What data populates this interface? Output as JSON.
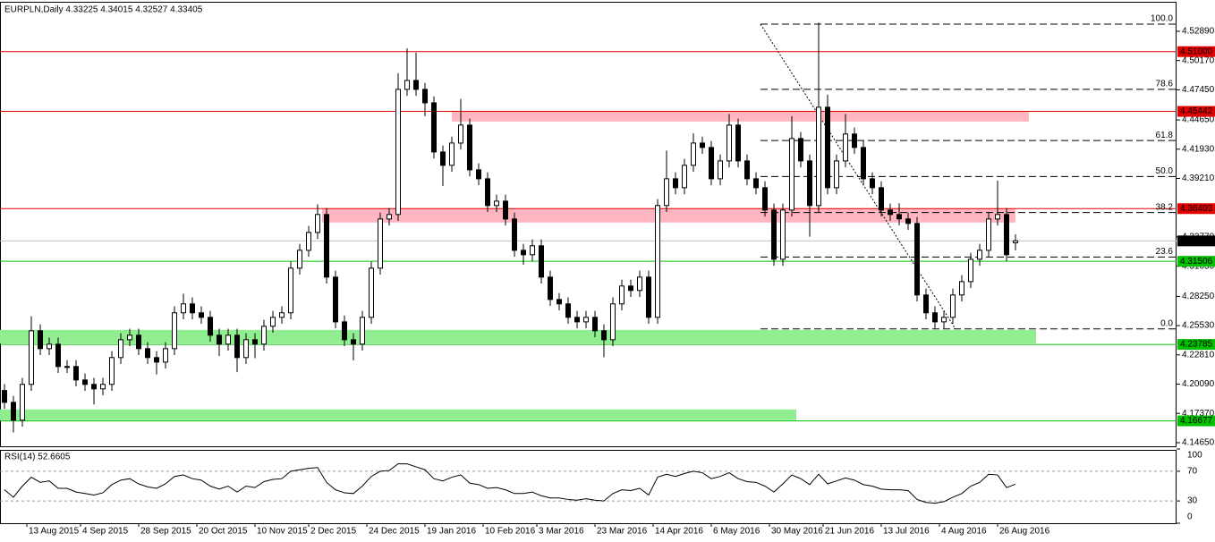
{
  "chart_data": [
    {
      "type": "candlestick",
      "title": "EURPLN,Daily  4.33225 4.34015 4.32527 4.33405",
      "x": [
        0,
        1,
        2,
        3,
        4,
        5,
        6,
        7,
        8,
        9,
        10,
        11,
        12,
        13,
        14,
        15,
        16,
        17,
        18,
        19,
        20,
        21,
        22,
        23,
        24,
        25,
        26,
        27,
        28,
        29,
        30,
        31,
        32,
        33,
        34,
        35,
        36,
        37,
        38,
        39,
        40,
        41,
        42,
        43,
        44,
        45,
        46,
        47,
        48,
        49,
        50,
        51,
        52,
        53,
        54,
        55,
        56,
        57,
        58,
        59,
        60,
        61,
        62,
        63,
        64,
        65,
        66,
        67,
        68,
        69,
        70,
        71,
        72,
        73,
        74,
        75,
        76,
        77,
        78,
        79,
        80,
        81,
        82,
        83,
        84,
        85,
        86,
        87,
        88,
        89,
        90,
        91,
        92,
        93,
        94,
        95,
        96,
        97,
        98,
        99,
        100,
        101,
        102,
        103,
        104,
        105,
        106,
        107,
        108,
        109,
        110,
        111,
        112,
        113
      ],
      "open": [
        4.195,
        4.184,
        4.1674,
        4.2007,
        4.2505,
        4.2339,
        4.2381,
        4.2173,
        4.2173,
        4.2048,
        4.2007,
        4.1965,
        4.2007,
        4.2256,
        4.2422,
        4.2464,
        4.2339,
        4.2256,
        4.2214,
        4.2339,
        4.2672,
        4.2755,
        4.2672,
        4.263,
        4.2464,
        4.2381,
        4.2464,
        4.2256,
        4.2422,
        4.2381,
        4.2547,
        4.263,
        4.2672,
        4.3087,
        4.3253,
        4.3419,
        4.3586,
        4.3004,
        4.2588,
        4.2422,
        4.2381,
        4.263,
        4.3087,
        4.3544,
        4.3586,
        4.4749,
        4.4832,
        4.4749,
        4.4624,
        4.4167,
        4.4043,
        4.425,
        4.4417,
        4.4001,
        4.3918,
        4.3669,
        4.371,
        4.3544,
        4.3253,
        4.3212,
        4.3295,
        4.3004,
        4.2796,
        4.2755,
        4.263,
        4.2588,
        4.263,
        4.2505,
        4.2422,
        4.2755,
        4.2921,
        4.288,
        4.3004,
        4.263,
        4.3669,
        4.3918,
        4.3835,
        4.4043,
        4.425,
        4.4209,
        4.3918,
        4.4084,
        4.4417,
        4.4084,
        4.3918,
        4.3835,
        4.3627,
        4.317,
        4.3627,
        4.4292,
        4.4084,
        4.3669,
        4.4583,
        4.3835,
        4.4084,
        4.4334,
        4.4209,
        4.3918,
        4.3835,
        4.3627,
        4.3586,
        4.3545,
        4.3503,
        4.2838,
        4.2672,
        4.2588,
        4.263,
        4.2838,
        4.2962,
        4.317,
        4.3253,
        4.3544,
        4.3586,
        4.3323
      ],
      "high": [
        4.201,
        4.19,
        4.2067,
        4.264,
        4.2565,
        4.2441,
        4.2441,
        4.2233,
        4.2233,
        4.2108,
        4.2067,
        4.2067,
        4.2316,
        4.2482,
        4.2524,
        4.2524,
        4.2399,
        4.2316,
        4.2399,
        4.2732,
        4.285,
        4.2815,
        4.2732,
        4.269,
        4.2524,
        4.2524,
        4.2524,
        4.2482,
        4.2482,
        4.2607,
        4.269,
        4.2732,
        4.3147,
        4.3313,
        4.3479,
        4.368,
        4.3646,
        4.3064,
        4.2648,
        4.2482,
        4.269,
        4.3147,
        4.3604,
        4.3646,
        4.49,
        4.513,
        4.509,
        4.4809,
        4.4684,
        4.4227,
        4.431,
        4.466,
        4.4477,
        4.4061,
        4.3978,
        4.377,
        4.377,
        4.3604,
        4.3313,
        4.3355,
        4.3355,
        4.3064,
        4.2856,
        4.2815,
        4.269,
        4.269,
        4.269,
        4.2565,
        4.2815,
        4.2981,
        4.2981,
        4.3064,
        4.3064,
        4.3729,
        4.418,
        4.3978,
        4.4103,
        4.434,
        4.431,
        4.4269,
        4.4144,
        4.452,
        4.4477,
        4.4144,
        4.3978,
        4.3895,
        4.3687,
        4.3687,
        4.45,
        4.4352,
        4.4144,
        4.537,
        4.47,
        4.4144,
        4.452,
        4.4394,
        4.4269,
        4.3978,
        4.3895,
        4.3687,
        4.369,
        4.3605,
        4.3563,
        4.2898,
        4.2732,
        4.269,
        4.2898,
        4.3022,
        4.323,
        4.3313,
        4.3604,
        4.39,
        4.3646,
        4.3402
      ],
      "low": [
        4.178,
        4.156,
        4.1614,
        4.1947,
        4.2279,
        4.2279,
        4.2113,
        4.2113,
        4.1988,
        4.1947,
        4.182,
        4.1905,
        4.1947,
        4.2196,
        4.2362,
        4.2279,
        4.2196,
        4.21,
        4.2154,
        4.2279,
        4.2612,
        4.2612,
        4.257,
        4.2404,
        4.227,
        4.2321,
        4.212,
        4.2196,
        4.225,
        4.2321,
        4.2487,
        4.257,
        4.2612,
        4.3027,
        4.3193,
        4.3359,
        4.2944,
        4.2528,
        4.2362,
        4.223,
        4.2321,
        4.257,
        4.3027,
        4.3484,
        4.3526,
        4.4689,
        4.4689,
        4.45,
        4.4107,
        4.385,
        4.3983,
        4.419,
        4.3941,
        4.3858,
        4.3609,
        4.3609,
        4.3484,
        4.3193,
        4.312,
        4.3152,
        4.2944,
        4.2736,
        4.2695,
        4.257,
        4.2528,
        4.2528,
        4.2445,
        4.226,
        4.2362,
        4.2695,
        4.282,
        4.282,
        4.257,
        4.257,
        4.3609,
        4.3775,
        4.3775,
        4.3983,
        4.4149,
        4.3858,
        4.3858,
        4.4024,
        4.4024,
        4.3858,
        4.3775,
        4.3567,
        4.311,
        4.311,
        4.3567,
        4.4024,
        4.338,
        4.3609,
        4.3775,
        4.3775,
        4.4024,
        4.4149,
        4.3858,
        4.3775,
        4.3567,
        4.3526,
        4.3485,
        4.3443,
        4.2778,
        4.2612,
        4.2528,
        4.2528,
        4.257,
        4.2778,
        4.2902,
        4.311,
        4.3193,
        4.3484,
        4.3152,
        4.3253
      ],
      "close": [
        4.184,
        4.1674,
        4.2007,
        4.2505,
        4.2339,
        4.2381,
        4.2173,
        4.2173,
        4.2048,
        4.2007,
        4.1965,
        4.2007,
        4.2256,
        4.2422,
        4.2464,
        4.2339,
        4.2256,
        4.2214,
        4.2339,
        4.2672,
        4.2755,
        4.2672,
        4.263,
        4.2464,
        4.2381,
        4.2464,
        4.2256,
        4.2422,
        4.2381,
        4.2547,
        4.263,
        4.2672,
        4.3087,
        4.3253,
        4.3419,
        4.3586,
        4.3004,
        4.2588,
        4.2422,
        4.2381,
        4.263,
        4.3087,
        4.3544,
        4.3586,
        4.4749,
        4.4832,
        4.4749,
        4.4624,
        4.4167,
        4.4043,
        4.425,
        4.4417,
        4.4001,
        4.3918,
        4.3669,
        4.371,
        4.3544,
        4.3253,
        4.3212,
        4.3295,
        4.3004,
        4.2796,
        4.2755,
        4.263,
        4.2588,
        4.263,
        4.2505,
        4.2422,
        4.2755,
        4.2921,
        4.288,
        4.3004,
        4.263,
        4.3669,
        4.3918,
        4.3835,
        4.4043,
        4.425,
        4.4209,
        4.3918,
        4.4084,
        4.4417,
        4.4084,
        4.3918,
        4.3835,
        4.3627,
        4.317,
        4.3627,
        4.4292,
        4.4084,
        4.3669,
        4.4583,
        4.3835,
        4.4084,
        4.4334,
        4.4209,
        4.3918,
        4.3835,
        4.3627,
        4.3586,
        4.3545,
        4.3503,
        4.2838,
        4.2672,
        4.2588,
        4.263,
        4.2838,
        4.2962,
        4.317,
        4.3253,
        4.3544,
        4.3586,
        4.3212,
        4.3341
      ],
      "up_color": "#ffffff",
      "down_color": "#000000",
      "wick_color": "#000000",
      "xlim": [
        -0.5,
        131
      ],
      "ylim": [
        4.1423,
        4.5563
      ],
      "yticks": [
        {
          "value": 4.5289,
          "label": "4.52890"
        },
        {
          "value": 4.5017,
          "label": "4.50170"
        },
        {
          "value": 4.4745,
          "label": "4.47450"
        },
        {
          "value": 4.4465,
          "label": "4.44650"
        },
        {
          "value": 4.4193,
          "label": "4.41930"
        },
        {
          "value": 4.3921,
          "label": "4.39210"
        },
        {
          "value": 4.3377,
          "label": "4.33770"
        },
        {
          "value": 4.3105,
          "label": "4.31050"
        },
        {
          "value": 4.2825,
          "label": "4.28250"
        },
        {
          "value": 4.2553,
          "label": "4.25530"
        },
        {
          "value": 4.2281,
          "label": "4.22810"
        },
        {
          "value": 4.2009,
          "label": "4.20090"
        },
        {
          "value": 4.1737,
          "label": "4.17370"
        },
        {
          "value": 4.1465,
          "label": "4.14650"
        }
      ],
      "zones": [
        {
          "from": 4.445,
          "to": 4.455,
          "start": 50,
          "end": 114.5,
          "color": "#ffb6c1"
        },
        {
          "from": 4.3511,
          "to": 4.3644,
          "start": 35.5,
          "end": 113,
          "color": "#ffb6c1"
        },
        {
          "from": 4.2388,
          "to": 4.2513,
          "start": -0.5,
          "end": 115.3,
          "color": "#90ee90"
        },
        {
          "from": 4.1674,
          "to": 4.1774,
          "start": -0.5,
          "end": 88.5,
          "color": "#90ee90"
        }
      ],
      "levels": [
        {
          "value": 4.51,
          "label": "4.51000",
          "color": "#e00000",
          "text_color": "#ffffff"
        },
        {
          "value": 4.45442,
          "label": "4.45442",
          "color": "#e00000",
          "text_color": "#ffffff"
        },
        {
          "value": 4.36403,
          "label": "4.36403",
          "color": "#e00000",
          "text_color": "#ffffff"
        },
        {
          "value": 4.33405,
          "label": "4.33405",
          "color": "#c0c0c0",
          "box_color": "#000000",
          "text_color": "#ffffff"
        },
        {
          "value": 4.31506,
          "label": "4.31506",
          "color": "#00c000",
          "text_color": "#000000"
        },
        {
          "value": 4.23785,
          "label": "4.23785",
          "color": "#00c000",
          "text_color": "#000000"
        },
        {
          "value": 4.16677,
          "label": "4.16677",
          "color": "#00c000",
          "text_color": "#000000"
        }
      ],
      "fibonacci": {
        "start": 84.5,
        "end": 131,
        "levels": [
          {
            "label": "100.0",
            "value": 4.5355
          },
          {
            "label": "78.6",
            "value": 4.4749
          },
          {
            "label": "61.8",
            "value": 4.4273
          },
          {
            "label": "50.0",
            "value": 4.3939
          },
          {
            "label": "38.2",
            "value": 4.3604
          },
          {
            "label": "23.6",
            "value": 4.3191
          },
          {
            "label": "0.0",
            "value": 4.2522
          }
        ],
        "trendline": {
          "x": [
            84.5,
            106.3
          ],
          "y": [
            4.5355,
            4.2522
          ]
        }
      }
    },
    {
      "type": "line",
      "title": "RSI(14) 52.6605",
      "x": [
        0,
        1,
        2,
        3,
        4,
        5,
        6,
        7,
        8,
        9,
        10,
        11,
        12,
        13,
        14,
        15,
        16,
        17,
        18,
        19,
        20,
        21,
        22,
        23,
        24,
        25,
        26,
        27,
        28,
        29,
        30,
        31,
        32,
        33,
        34,
        35,
        36,
        37,
        38,
        39,
        40,
        41,
        42,
        43,
        44,
        45,
        46,
        47,
        48,
        49,
        50,
        51,
        52,
        53,
        54,
        55,
        56,
        57,
        58,
        59,
        60,
        61,
        62,
        63,
        64,
        65,
        66,
        67,
        68,
        69,
        70,
        71,
        72,
        73,
        74,
        75,
        76,
        77,
        78,
        79,
        80,
        81,
        82,
        83,
        84,
        85,
        86,
        87,
        88,
        89,
        90,
        91,
        92,
        93,
        94,
        95,
        96,
        97,
        98,
        99,
        100,
        101,
        102,
        103,
        104,
        105,
        106,
        107,
        108,
        109,
        110,
        111,
        112,
        113
      ],
      "values": [
        45,
        35,
        50,
        62,
        55,
        57,
        47,
        47,
        42,
        40,
        38,
        41,
        52,
        58,
        60,
        53,
        49,
        47,
        53,
        63,
        65,
        60,
        58,
        50,
        46,
        50,
        42,
        50,
        48,
        56,
        59,
        60,
        70,
        72,
        74,
        75,
        55,
        45,
        41,
        40,
        50,
        63,
        70,
        71,
        80,
        80,
        76,
        72,
        60,
        57,
        62,
        65,
        54,
        52,
        47,
        48,
        45,
        40,
        40,
        42,
        37,
        34,
        34,
        32,
        31,
        33,
        31,
        30,
        40,
        45,
        44,
        47,
        38,
        62,
        66,
        63,
        67,
        70,
        68,
        60,
        63,
        68,
        60,
        56,
        55,
        50,
        42,
        53,
        65,
        60,
        52,
        66,
        53,
        57,
        61,
        58,
        52,
        50,
        46,
        45,
        45,
        44,
        32,
        28,
        27,
        29,
        35,
        40,
        50,
        55,
        66,
        65,
        48,
        52.6605
      ],
      "color": "#000000",
      "xlim": [
        -0.5,
        131
      ],
      "ylim": [
        0,
        100
      ],
      "yticks": [
        100,
        70,
        30,
        0
      ],
      "dashed_levels": [
        70,
        30
      ],
      "xticks": [
        {
          "value": 2.5,
          "label": "13 Aug 2015"
        },
        {
          "value": 8.5,
          "label": "4 Sep 2015"
        },
        {
          "value": 15,
          "label": "28 Sep 2015"
        },
        {
          "value": 21.5,
          "label": "20 Oct 2015"
        },
        {
          "value": 28,
          "label": "10 Nov 2015"
        },
        {
          "value": 34,
          "label": "2 Dec 2015"
        },
        {
          "value": 40.5,
          "label": "24 Dec 2015"
        },
        {
          "value": 47,
          "label": "19 Jan 2016"
        },
        {
          "value": 53.5,
          "label": "10 Feb 2016"
        },
        {
          "value": 59.5,
          "label": "3 Mar 2016"
        },
        {
          "value": 66,
          "label": "23 Mar 2016"
        },
        {
          "value": 72.5,
          "label": "14 Apr 2016"
        },
        {
          "value": 79,
          "label": "6 May 2016"
        },
        {
          "value": 85.5,
          "label": "30 May 2016"
        },
        {
          "value": 91.5,
          "label": "21 Jun 2016"
        },
        {
          "value": 98,
          "label": "13 Jul 2016"
        },
        {
          "value": 104.5,
          "label": "4 Aug 2016"
        },
        {
          "value": 111,
          "label": "26 Aug 2016"
        }
      ]
    }
  ]
}
